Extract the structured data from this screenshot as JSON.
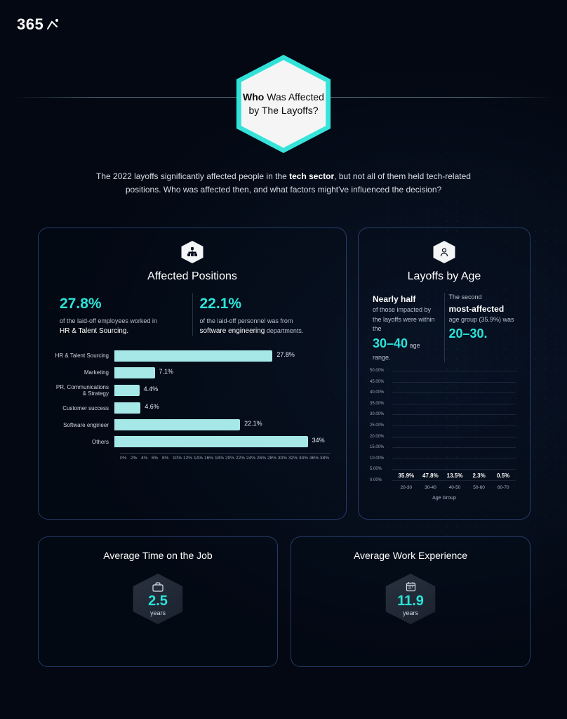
{
  "brand": "365",
  "colors": {
    "accent": "#2ae3d9",
    "bar_h": "#a6e8e8",
    "bar_v": "#a4e6e4",
    "bg_from": "#0a1528",
    "bg_to": "#030812",
    "panel_border": "rgba(80,120,200,0.45)",
    "text_muted": "#b8c0cc",
    "grid": "rgba(120,140,170,0.18)"
  },
  "title": {
    "bold": "Who",
    "rest": " Was Affected by The Layoffs?"
  },
  "intro": {
    "pre": "The 2022 layoffs significantly affected people in the ",
    "bold": "tech sector",
    "post": ", but not all of them held tech-related positions. Who was affected then, and what factors might've influenced the decision?"
  },
  "positions": {
    "title": "Affected Positions",
    "stats": [
      {
        "value": "27.8%",
        "line1": "of the laid-off employees worked in",
        "line2": "HR & Talent Sourcing."
      },
      {
        "value": "22.1%",
        "line1": "of the laid-off personnel was from",
        "line2": "software engineering",
        "line3": "departments."
      }
    ],
    "chart": {
      "type": "bar-horizontal",
      "xmax": 38,
      "xtick_step": 2,
      "bar_color": "#a6e8e8",
      "label_fontsize": 8,
      "value_fontsize": 9,
      "rows": [
        {
          "label": "HR & Talent Sourcing",
          "value": 27.8,
          "display": "27.8%"
        },
        {
          "label": "Marketing",
          "value": 7.1,
          "display": "7.1%"
        },
        {
          "label": "PR, Communications & Strategy",
          "value": 4.4,
          "display": "4.4%"
        },
        {
          "label": "Customer success",
          "value": 4.6,
          "display": "4.6%"
        },
        {
          "label": "Software engineer",
          "value": 22.1,
          "display": "22.1%"
        },
        {
          "label": "Others",
          "value": 34,
          "display": "34%"
        }
      ],
      "xticks": [
        "0%",
        "2%",
        "4%",
        "6%",
        "8%",
        "10%",
        "12%",
        "14%",
        "16%",
        "18%",
        "20%",
        "22%",
        "24%",
        "26%",
        "28%",
        "30%",
        "32%",
        "34%",
        "36%",
        "38%"
      ]
    }
  },
  "age": {
    "title": "Layoffs by Age",
    "stats": [
      {
        "head": "Nearly half",
        "line": "of those impacted by the layoffs were within the",
        "big": "30–40",
        "tail": "age range."
      },
      {
        "line1": "The second",
        "head": "most-affected",
        "line2": "age group (35.9%) was",
        "big": "20–30."
      }
    ],
    "chart": {
      "type": "bar-vertical",
      "ymax": 50,
      "ytick_step": 5,
      "bar_color": "#a4e6e4",
      "xaxis_title": "Age Group",
      "yticks": [
        "50.00%",
        "45.00%",
        "40.00%",
        "35.00%",
        "30.00%",
        "25.00%",
        "20.00%",
        "15.00%",
        "10.00%",
        "5.00%",
        "0.00%"
      ],
      "cols": [
        {
          "label": "20-30",
          "value": 35.9,
          "display": "35.9%"
        },
        {
          "label": "30-40",
          "value": 47.8,
          "display": "47.8%"
        },
        {
          "label": "40-50",
          "value": 13.5,
          "display": "13.5%"
        },
        {
          "label": "50-60",
          "value": 2.3,
          "display": "2.3%"
        },
        {
          "label": "60-70",
          "value": 0.5,
          "display": "0.5%"
        }
      ]
    }
  },
  "bottom": [
    {
      "title": "Average Time on the Job",
      "icon": "briefcase",
      "value": "2.5",
      "unit": "years"
    },
    {
      "title": "Average Work Experience",
      "icon": "calendar",
      "value": "11.9",
      "unit": "years"
    }
  ]
}
